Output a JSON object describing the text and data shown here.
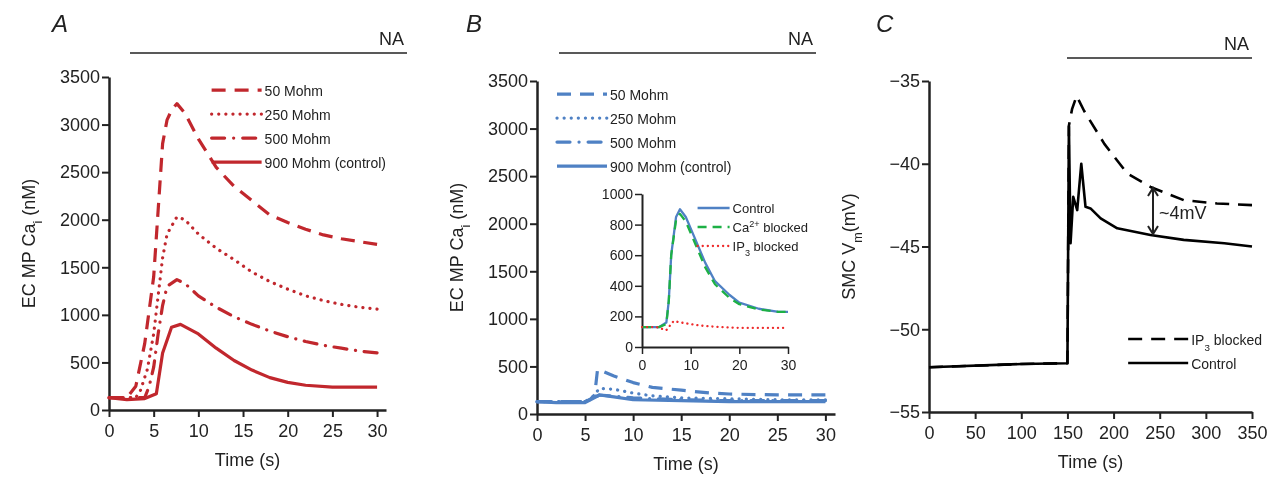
{
  "chart_data": [
    {
      "type": "line",
      "title": "A",
      "ylabel": "EC MP Ca$_{i}$ (nM)",
      "xlabel": "Time (s)",
      "xlim": [
        0,
        31
      ],
      "xticks": [
        0,
        5,
        10,
        15,
        20,
        25,
        30
      ],
      "ylim": [
        0,
        3500
      ],
      "yticks": [
        0,
        500,
        1000,
        1500,
        2000,
        2500,
        3000,
        3500
      ],
      "legend": "top right",
      "annotations": [
        "NA"
      ],
      "series": [
        {
          "name": "50 Mohm",
          "color": "#c1272d",
          "line_style": "dashed",
          "x": [
            0,
            2,
            3,
            4,
            5,
            5.5,
            6,
            6.5,
            7,
            7.6,
            8.5,
            10,
            12,
            14,
            16,
            18,
            20,
            22,
            24,
            26,
            28,
            30
          ],
          "values": [
            130,
            130,
            250,
            700,
            1400,
            2100,
            2800,
            3050,
            3150,
            3220,
            3120,
            2850,
            2550,
            2350,
            2200,
            2050,
            1970,
            1900,
            1840,
            1800,
            1770,
            1740
          ]
        },
        {
          "name": "250 Mohm",
          "color": "#c1272d",
          "line_style": "dotted",
          "x": [
            0,
            3,
            3.5,
            4.3,
            5,
            5.5,
            6,
            6.5,
            7.6,
            8.5,
            10,
            12,
            14,
            16,
            18,
            20,
            22,
            24,
            26,
            28,
            30
          ],
          "values": [
            130,
            130,
            200,
            430,
            800,
            1200,
            1600,
            1850,
            2030,
            2000,
            1850,
            1700,
            1580,
            1450,
            1350,
            1270,
            1200,
            1150,
            1110,
            1080,
            1060
          ]
        },
        {
          "name": "500 Mohm",
          "color": "#c1272d",
          "line_style": "dashdot",
          "x": [
            0,
            4,
            4.5,
            5,
            5.5,
            6,
            6.5,
            7.6,
            8.5,
            10,
            12,
            14,
            16,
            18,
            20,
            22,
            24,
            26,
            28,
            30
          ],
          "values": [
            130,
            130,
            250,
            450,
            800,
            1100,
            1300,
            1370,
            1330,
            1200,
            1080,
            980,
            900,
            830,
            770,
            720,
            680,
            650,
            620,
            600
          ]
        },
        {
          "name": "900 Mohm (control)",
          "color": "#c1272d",
          "line_style": "solid",
          "x": [
            0,
            2,
            4,
            5.3,
            6,
            7,
            8,
            10,
            12,
            14,
            16,
            18,
            20,
            22,
            25,
            30
          ],
          "values": [
            130,
            110,
            120,
            170,
            600,
            870,
            900,
            800,
            650,
            520,
            420,
            340,
            290,
            260,
            240,
            240
          ]
        }
      ]
    },
    {
      "type": "line",
      "title": "B",
      "ylabel": "EC MP Ca$_{i}$ (nM)",
      "xlabel": "Time (s)",
      "xlim": [
        0,
        31
      ],
      "xticks": [
        0,
        5,
        10,
        15,
        20,
        25,
        30
      ],
      "ylim": [
        0,
        3500
      ],
      "yticks": [
        0,
        500,
        1000,
        1500,
        2000,
        2500,
        3000,
        3500
      ],
      "legend": "top left",
      "annotations": [
        "NA"
      ],
      "series": [
        {
          "name": "50 Mohm",
          "color": "#4f81c4",
          "line_style": "dashed",
          "x": [
            0,
            5,
            5.5,
            6,
            6.3,
            8,
            10,
            12,
            15,
            18,
            20,
            25,
            30
          ],
          "values": [
            130,
            130,
            150,
            200,
            470,
            400,
            330,
            280,
            250,
            220,
            210,
            200,
            200
          ]
        },
        {
          "name": "250 Mohm",
          "color": "#4f81c4",
          "line_style": "dotted",
          "x": [
            0,
            5,
            5.8,
            6.5,
            8,
            10,
            12,
            15,
            20,
            25,
            30
          ],
          "values": [
            130,
            130,
            180,
            270,
            260,
            220,
            190,
            170,
            160,
            150,
            150
          ]
        },
        {
          "name": "500 Mohm",
          "color": "#4f81c4",
          "line_style": "dashdot",
          "x": [
            0,
            5,
            6.5,
            10,
            15,
            20,
            30
          ],
          "values": [
            130,
            130,
            200,
            170,
            150,
            140,
            140
          ]
        },
        {
          "name": "900 Mohm (control)",
          "color": "#4f81c4",
          "line_style": "solid",
          "x": [
            0,
            2,
            5,
            6.5,
            8,
            10,
            15,
            20,
            30
          ],
          "values": [
            130,
            120,
            120,
            200,
            180,
            150,
            140,
            130,
            130
          ]
        }
      ]
    },
    {
      "type": "line",
      "xlim": [
        0,
        30
      ],
      "xticks": [
        0,
        10,
        20,
        30
      ],
      "ylim": [
        0,
        1000
      ],
      "yticks": [
        0,
        200,
        400,
        600,
        800,
        1000
      ],
      "legend": "top right",
      "series": [
        {
          "name": "Control",
          "color": "#4f81c4",
          "line_style": "solid",
          "x": [
            0,
            3.5,
            5,
            5.5,
            6,
            7,
            7.8,
            9,
            11,
            13,
            15,
            18,
            20,
            24,
            28,
            30
          ],
          "values": [
            130,
            130,
            160,
            300,
            600,
            850,
            900,
            850,
            700,
            550,
            430,
            340,
            290,
            250,
            230,
            230
          ]
        },
        {
          "name": "Ca$^{2+}$ blocked",
          "color": "#1db045",
          "line_style": "dashed",
          "x": [
            0,
            3.5,
            5,
            5.5,
            6,
            7,
            7.8,
            9,
            11,
            13,
            15,
            18,
            20,
            24,
            28,
            29.5
          ],
          "values": [
            130,
            130,
            150,
            300,
            600,
            830,
            870,
            820,
            670,
            520,
            410,
            320,
            280,
            245,
            230,
            230
          ]
        },
        {
          "name": "IP$_{3}$ blocked",
          "color": "#ee2b2b",
          "line_style": "dotted",
          "x": [
            0,
            3,
            5,
            6.5,
            8,
            12,
            16,
            20,
            29
          ],
          "values": [
            130,
            130,
            110,
            170,
            160,
            140,
            130,
            125,
            125
          ]
        }
      ]
    },
    {
      "type": "line",
      "title": "C",
      "ylabel": "SMC V$_{m}$(mV)",
      "xlabel": "Time (s)",
      "xlim": [
        0,
        350
      ],
      "xticks": [
        0,
        50,
        100,
        150,
        200,
        250,
        300,
        350
      ],
      "ylim": [
        -55,
        -35
      ],
      "yticks": [
        -55,
        -50,
        -45,
        -40,
        -35
      ],
      "legend": "bottom right",
      "annotations": [
        "NA",
        "~4mV"
      ],
      "series": [
        {
          "name": "IP$_{3}$ blocked",
          "color": "#000000",
          "line_style": "dashed",
          "x": [
            0,
            100,
            150,
            151.6,
            155,
            160,
            168,
            190,
            215,
            240,
            276,
            312,
            350
          ],
          "values": [
            -52.3,
            -52.1,
            -52.05,
            -37.7,
            -36.7,
            -35.9,
            -36.8,
            -38.8,
            -40.6,
            -41.4,
            -42.2,
            -42.4,
            -42.5
          ]
        },
        {
          "name": "Control",
          "color": "#000000",
          "line_style": "solid",
          "x": [
            0,
            100,
            150,
            151.6,
            153.4,
            156.3,
            160.6,
            165,
            169.6,
            175,
            186,
            204,
            240,
            276,
            320,
            350
          ],
          "values": [
            -52.3,
            -52.1,
            -52.05,
            -37.75,
            -44.8,
            -42,
            -42.8,
            -40,
            -42.6,
            -42.7,
            -43.3,
            -43.9,
            -44.3,
            -44.6,
            -44.8,
            -45
          ]
        }
      ]
    }
  ]
}
